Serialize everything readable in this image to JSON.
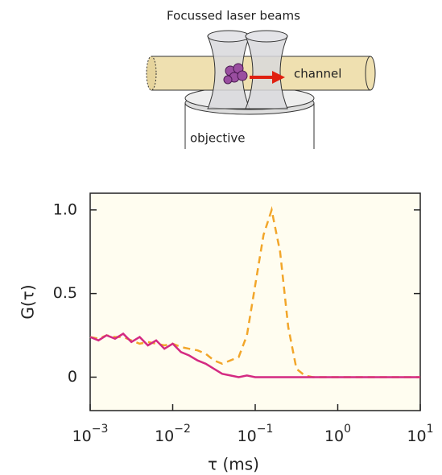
{
  "diagram": {
    "title": "Focussed laser beams",
    "channel_label": "channel",
    "objective_label": "objective"
  },
  "chart_data": {
    "type": "line",
    "x_label": "τ (ms)",
    "y_label": "G(τ)",
    "xscale": "log",
    "x": [
      0.001,
      0.00126,
      0.00158,
      0.002,
      0.00251,
      0.00316,
      0.00398,
      0.00501,
      0.00631,
      0.00794,
      0.01,
      0.0126,
      0.0158,
      0.02,
      0.0251,
      0.0316,
      0.0398,
      0.0501,
      0.0631,
      0.0794,
      0.1,
      0.126,
      0.158,
      0.2,
      0.251,
      0.316,
      0.398,
      0.501,
      0.631,
      0.794,
      1,
      1.26,
      1.58,
      2,
      2.51,
      3.16,
      3.98,
      5.01,
      6.31,
      7.94,
      10
    ],
    "series": [
      {
        "color": "#f2a62a",
        "dashed": true,
        "values": [
          0.24,
          0.23,
          0.25,
          0.24,
          0.24,
          0.22,
          0.2,
          0.21,
          0.2,
          0.19,
          0.2,
          0.18,
          0.17,
          0.16,
          0.14,
          0.1,
          0.08,
          0.1,
          0.12,
          0.25,
          0.55,
          0.85,
          1.0,
          0.75,
          0.3,
          0.05,
          0.01,
          0,
          0,
          0,
          0,
          0,
          0,
          0,
          0,
          0,
          0,
          0,
          0,
          0,
          0
        ]
      },
      {
        "color": "#d42a82",
        "dashed": false,
        "values": [
          0.24,
          0.22,
          0.25,
          0.23,
          0.26,
          0.21,
          0.24,
          0.19,
          0.22,
          0.17,
          0.2,
          0.15,
          0.13,
          0.1,
          0.08,
          0.05,
          0.02,
          0.01,
          0,
          0.01,
          0,
          0,
          0,
          0,
          0,
          0,
          0,
          0,
          0,
          0,
          0,
          0,
          0,
          0,
          0,
          0,
          0,
          0,
          0,
          0,
          0
        ]
      }
    ],
    "xlim": [
      0.001,
      10
    ],
    "xticks": [
      {
        "value": 0.001,
        "label": "10−3"
      },
      {
        "value": 0.01,
        "label": "10−2"
      },
      {
        "value": 0.1,
        "label": "10−1"
      },
      {
        "value": 1,
        "label": "100"
      },
      {
        "value": 10,
        "label": "101"
      }
    ],
    "ylim": [
      -0.2,
      1.1
    ],
    "yticks": [
      0,
      0.5,
      {
        "value": 1,
        "label": "1.0"
      }
    ]
  }
}
